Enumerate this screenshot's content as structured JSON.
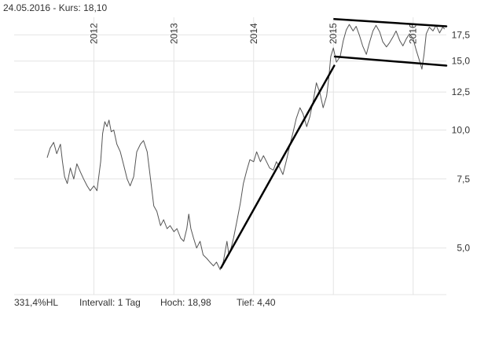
{
  "header": {
    "date": "24.05.2016",
    "separator": " - ",
    "price_label": "Kurs:",
    "price": "18,10"
  },
  "footer": {
    "range_pct": "331,4%HL",
    "interval_label": "Intervall:",
    "interval": "1 Tag",
    "high_label": "Hoch:",
    "high": "18,98",
    "low_label": "Tief:",
    "low": "4,40"
  },
  "colors": {
    "price_line": "#555555",
    "trend_line": "#000000",
    "grid": "#e4e4e4",
    "text": "#333333"
  },
  "chart_data": {
    "type": "line",
    "y_scale": "log",
    "ylim": [
      3.8,
      19.4
    ],
    "xlim": [
      "2011-01-01",
      "2016-06-01"
    ],
    "x_ticks": [
      "2012",
      "2013",
      "2014",
      "2015",
      "2016"
    ],
    "y_ticks": [
      {
        "value": 5.0,
        "label": "5,0"
      },
      {
        "value": 7.5,
        "label": "7,5"
      },
      {
        "value": 10.0,
        "label": "10,0"
      },
      {
        "value": 12.5,
        "label": "12,5"
      },
      {
        "value": 15.0,
        "label": "15,0"
      },
      {
        "value": 17.5,
        "label": "17,5"
      }
    ],
    "series": [
      {
        "points": [
          [
            "2011-06-01",
            8.5
          ],
          [
            "2011-06-15",
            9.0
          ],
          [
            "2011-07-01",
            9.3
          ],
          [
            "2011-07-15",
            8.7
          ],
          [
            "2011-08-01",
            9.2
          ],
          [
            "2011-08-10",
            8.3
          ],
          [
            "2011-08-20",
            7.6
          ],
          [
            "2011-09-01",
            7.3
          ],
          [
            "2011-09-15",
            8.0
          ],
          [
            "2011-10-01",
            7.5
          ],
          [
            "2011-10-15",
            8.2
          ],
          [
            "2011-11-01",
            7.8
          ],
          [
            "2011-11-15",
            7.5
          ],
          [
            "2011-12-01",
            7.2
          ],
          [
            "2011-12-15",
            7.0
          ],
          [
            "2012-01-01",
            7.2
          ],
          [
            "2012-01-15",
            7.0
          ],
          [
            "2012-02-01",
            8.3
          ],
          [
            "2012-02-10",
            9.8
          ],
          [
            "2012-02-20",
            10.5
          ],
          [
            "2012-03-01",
            10.2
          ],
          [
            "2012-03-10",
            10.6
          ],
          [
            "2012-03-20",
            9.9
          ],
          [
            "2012-04-01",
            10.0
          ],
          [
            "2012-04-15",
            9.2
          ],
          [
            "2012-05-01",
            8.8
          ],
          [
            "2012-05-15",
            8.2
          ],
          [
            "2012-06-01",
            7.5
          ],
          [
            "2012-06-15",
            7.2
          ],
          [
            "2012-07-01",
            7.6
          ],
          [
            "2012-07-15",
            8.8
          ],
          [
            "2012-08-01",
            9.2
          ],
          [
            "2012-08-15",
            9.4
          ],
          [
            "2012-09-01",
            8.8
          ],
          [
            "2012-09-15",
            7.6
          ],
          [
            "2012-10-01",
            6.4
          ],
          [
            "2012-10-15",
            6.2
          ],
          [
            "2012-11-01",
            5.7
          ],
          [
            "2012-11-15",
            5.9
          ],
          [
            "2012-12-01",
            5.6
          ],
          [
            "2012-12-15",
            5.7
          ],
          [
            "2013-01-01",
            5.5
          ],
          [
            "2013-01-15",
            5.6
          ],
          [
            "2013-02-01",
            5.3
          ],
          [
            "2013-02-15",
            5.2
          ],
          [
            "2013-03-01",
            5.6
          ],
          [
            "2013-03-10",
            6.1
          ],
          [
            "2013-03-20",
            5.6
          ],
          [
            "2013-04-01",
            5.3
          ],
          [
            "2013-04-15",
            5.0
          ],
          [
            "2013-05-01",
            5.2
          ],
          [
            "2013-05-15",
            4.8
          ],
          [
            "2013-06-01",
            4.7
          ],
          [
            "2013-06-15",
            4.6
          ],
          [
            "2013-07-01",
            4.5
          ],
          [
            "2013-07-15",
            4.6
          ],
          [
            "2013-08-01",
            4.4
          ],
          [
            "2013-08-15",
            4.6
          ],
          [
            "2013-09-01",
            5.2
          ],
          [
            "2013-09-10",
            4.8
          ],
          [
            "2013-09-20",
            5.0
          ],
          [
            "2013-10-01",
            5.3
          ],
          [
            "2013-10-15",
            5.8
          ],
          [
            "2013-11-01",
            6.5
          ],
          [
            "2013-11-15",
            7.3
          ],
          [
            "2013-12-01",
            7.9
          ],
          [
            "2013-12-15",
            8.4
          ],
          [
            "2014-01-01",
            8.3
          ],
          [
            "2014-01-15",
            8.8
          ],
          [
            "2014-02-01",
            8.3
          ],
          [
            "2014-02-15",
            8.6
          ],
          [
            "2014-03-01",
            8.3
          ],
          [
            "2014-03-15",
            8.0
          ],
          [
            "2014-04-01",
            7.9
          ],
          [
            "2014-04-15",
            8.3
          ],
          [
            "2014-05-01",
            8.0
          ],
          [
            "2014-05-15",
            7.7
          ],
          [
            "2014-06-01",
            8.4
          ],
          [
            "2014-06-15",
            9.1
          ],
          [
            "2014-07-01",
            9.9
          ],
          [
            "2014-07-15",
            10.7
          ],
          [
            "2014-08-01",
            11.4
          ],
          [
            "2014-08-15",
            11.0
          ],
          [
            "2014-09-01",
            10.2
          ],
          [
            "2014-09-15",
            10.8
          ],
          [
            "2014-10-01",
            11.9
          ],
          [
            "2014-10-15",
            13.2
          ],
          [
            "2014-11-01",
            12.4
          ],
          [
            "2014-11-15",
            11.4
          ],
          [
            "2014-12-01",
            12.2
          ],
          [
            "2014-12-10",
            13.4
          ],
          [
            "2014-12-20",
            15.4
          ],
          [
            "2015-01-01",
            16.2
          ],
          [
            "2015-01-15",
            14.9
          ],
          [
            "2015-02-01",
            15.4
          ],
          [
            "2015-02-15",
            16.9
          ],
          [
            "2015-03-01",
            18.0
          ],
          [
            "2015-03-15",
            18.6
          ],
          [
            "2015-04-01",
            17.9
          ],
          [
            "2015-04-15",
            18.4
          ],
          [
            "2015-05-01",
            17.4
          ],
          [
            "2015-05-15",
            16.4
          ],
          [
            "2015-06-01",
            15.6
          ],
          [
            "2015-06-15",
            16.7
          ],
          [
            "2015-07-01",
            17.9
          ],
          [
            "2015-07-15",
            18.5
          ],
          [
            "2015-08-01",
            17.8
          ],
          [
            "2015-08-15",
            16.8
          ],
          [
            "2015-09-01",
            16.3
          ],
          [
            "2015-09-15",
            16.7
          ],
          [
            "2015-10-01",
            17.3
          ],
          [
            "2015-10-15",
            17.9
          ],
          [
            "2015-11-01",
            16.9
          ],
          [
            "2015-11-15",
            16.4
          ],
          [
            "2015-12-01",
            17.1
          ],
          [
            "2015-12-15",
            17.6
          ],
          [
            "2016-01-01",
            17.1
          ],
          [
            "2016-01-15",
            16.0
          ],
          [
            "2016-02-01",
            14.9
          ],
          [
            "2016-02-10",
            14.3
          ],
          [
            "2016-02-20",
            15.6
          ],
          [
            "2016-03-01",
            17.6
          ],
          [
            "2016-03-15",
            18.3
          ],
          [
            "2016-04-01",
            17.9
          ],
          [
            "2016-04-15",
            18.5
          ],
          [
            "2016-05-01",
            17.7
          ],
          [
            "2016-05-15",
            18.3
          ],
          [
            "2016-05-24",
            18.1
          ]
        ]
      }
    ],
    "trend_lines": [
      {
        "from": [
          "2013-08-05",
          4.45
        ],
        "to": [
          "2015-01-05",
          14.6
        ]
      },
      {
        "from": [
          "2015-01-05",
          19.2
        ],
        "to": [
          "2016-06-01",
          18.4
        ]
      },
      {
        "from": [
          "2015-01-08",
          15.4
        ],
        "to": [
          "2016-06-01",
          14.6
        ]
      }
    ]
  }
}
